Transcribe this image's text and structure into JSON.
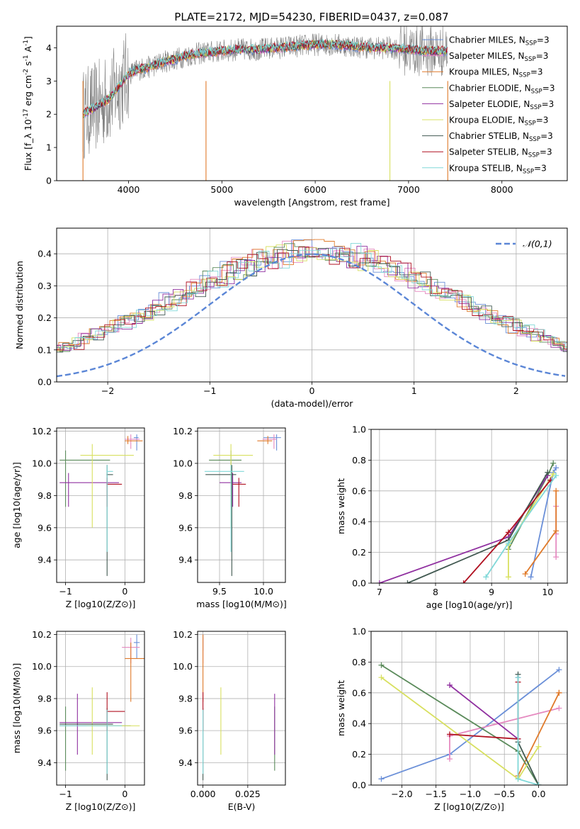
{
  "figure": {
    "title": "PLATE=2172, MJD=54230, FIBERID=0437, z=0.087"
  },
  "chart_data": [
    {
      "id": "spectrum",
      "type": "line",
      "title": "PLATE=2172, MJD=54230, FIBERID=0437, z=0.087",
      "xlabel": "wavelength [Angstrom, rest frame]",
      "ylabel": "Flux [f_λ 10^-17 erg cm^-2 s^-1 A^-1]",
      "xlim": [
        3230,
        8700
      ],
      "ylim": [
        0,
        4.65
      ],
      "xticks": [
        4000,
        5000,
        6000,
        7000,
        8000
      ],
      "yticks": [
        0,
        1,
        2,
        3,
        4
      ],
      "grid": false,
      "legend_position": "right",
      "data_color": "#808080",
      "series": [
        {
          "name": "Chabrier MILES, N_SSP=3",
          "color": "#6a8fd8"
        },
        {
          "name": "Salpeter MILES, N_SSP=3",
          "color": "#e58ac0"
        },
        {
          "name": "Kroupa MILES, N_SSP=3",
          "color": "#e07a2a"
        },
        {
          "name": "Chabrier ELODIE, N_SSP=3",
          "color": "#5a8a5a"
        },
        {
          "name": "Salpeter ELODIE, N_SSP=3",
          "color": "#9030a0"
        },
        {
          "name": "Kroupa ELODIE, N_SSP=3",
          "color": "#d8e060"
        },
        {
          "name": "Chabrier STELIB, N_SSP=3",
          "color": "#405850"
        },
        {
          "name": "Salpeter STELIB, N_SSP=3",
          "color": "#b01020"
        },
        {
          "name": "Kroupa STELIB, N_SSP=3",
          "color": "#80d8d8"
        }
      ],
      "continuum": {
        "x": [
          3510,
          3600,
          3700,
          3800,
          3900,
          4000,
          4100,
          4200,
          4300,
          4400,
          4500,
          4600,
          4800,
          5000,
          5200,
          5400,
          5600,
          5800,
          6000,
          6200,
          6400,
          6600,
          6800,
          7000,
          7200,
          7300
        ],
        "y": [
          2.0,
          2.15,
          2.3,
          2.5,
          2.85,
          3.2,
          3.35,
          3.4,
          3.5,
          3.6,
          3.65,
          3.75,
          3.85,
          3.9,
          3.95,
          3.95,
          4.0,
          4.05,
          4.1,
          4.1,
          4.05,
          4.0,
          4.0,
          3.95,
          3.9,
          3.9
        ]
      },
      "spikes": [
        {
          "x": 3512,
          "color": "#e07a2a"
        },
        {
          "x": 4830,
          "color": "#e07a2a"
        },
        {
          "x": 6800,
          "color": "#d8e060"
        },
        {
          "x": 7420,
          "color": "#e07a2a"
        }
      ]
    },
    {
      "id": "residuals",
      "type": "histogram",
      "xlabel": "(data-model)/error",
      "ylabel": "Normed distribution",
      "xlim": [
        -2.5,
        2.5
      ],
      "ylim": [
        0,
        0.48
      ],
      "xticks": [
        -2,
        -1,
        0,
        1,
        2
      ],
      "yticks": [
        0.0,
        0.1,
        0.2,
        0.3,
        0.4
      ],
      "grid": true,
      "legend": "𝒩(0,1)",
      "legend_position": "top-right",
      "bin_width": 0.1,
      "base_values": [
        0.017,
        0.022,
        0.027,
        0.032,
        0.038,
        0.044,
        0.052,
        0.06,
        0.068,
        0.077,
        0.087,
        0.097,
        0.109,
        0.12,
        0.133,
        0.146,
        0.159,
        0.174,
        0.188,
        0.203,
        0.218,
        0.234,
        0.25,
        0.266,
        0.282,
        0.297,
        0.313,
        0.327,
        0.341,
        0.354,
        0.366,
        0.377,
        0.386,
        0.394,
        0.4,
        0.404,
        0.406,
        0.41,
        0.405,
        0.4,
        0.394,
        0.386,
        0.377,
        0.366,
        0.354,
        0.341,
        0.327,
        0.313,
        0.297,
        0.282,
        0.266,
        0.25,
        0.234,
        0.218,
        0.203,
        0.188,
        0.174,
        0.159,
        0.146,
        0.133,
        0.12,
        0.109,
        0.097,
        0.087,
        0.077,
        0.068,
        0.06,
        0.052,
        0.044,
        0.038,
        0.032,
        0.027,
        0.022,
        0.017
      ]
    },
    {
      "id": "age-vs-Z",
      "type": "scatter",
      "xlabel": "Z [log10(Z/Z⊙)]",
      "ylabel": "age  [log10(age/yr)]",
      "xlim": [
        -1.15,
        0.33
      ],
      "ylim": [
        9.26,
        10.22
      ],
      "xticks": [
        -1,
        0
      ],
      "yticks": [
        9.4,
        9.6,
        9.8,
        10.0,
        10.2
      ],
      "grid": true,
      "points": [
        {
          "x": 0.2,
          "y": 10.16,
          "xerr": [
            0.05,
            0.03
          ],
          "yerr": [
            0.08,
            0.02
          ],
          "color": "#6a8fd8"
        },
        {
          "x": 0.1,
          "y": 10.15,
          "xerr": [
            0.1,
            0.15
          ],
          "yerr": [
            0.06,
            0.03
          ],
          "color": "#e58ac0"
        },
        {
          "x": 0.05,
          "y": 10.14,
          "xerr": [
            0.05,
            0.25
          ],
          "yerr": [
            0.02,
            0.03
          ],
          "color": "#e07a2a"
        },
        {
          "x": -1.0,
          "y": 10.02,
          "xerr": [
            0.1,
            0.75
          ],
          "yerr": [
            0.29,
            0.06
          ],
          "color": "#5a8a5a"
        },
        {
          "x": -0.95,
          "y": 9.88,
          "xerr": [
            0.15,
            0.85
          ],
          "yerr": [
            0.15,
            0.06
          ],
          "color": "#9030a0"
        },
        {
          "x": -0.55,
          "y": 10.05,
          "xerr": [
            0.2,
            0.7
          ],
          "yerr": [
            0.45,
            0.07
          ],
          "color": "#d8e060"
        },
        {
          "x": -0.3,
          "y": 9.93,
          "xerr": [
            0.01,
            0.1
          ],
          "yerr": [
            0.63,
            0.06
          ],
          "color": "#405850"
        },
        {
          "x": -0.3,
          "y": 9.87,
          "xerr": [
            0.01,
            0.25
          ],
          "yerr": [
            0.14,
            0.04
          ],
          "color": "#b01020"
        },
        {
          "x": -0.3,
          "y": 9.95,
          "xerr": [
            0.01,
            0.1
          ],
          "yerr": [
            0.5,
            0.04
          ],
          "color": "#80d8d8"
        }
      ]
    },
    {
      "id": "age-vs-mass",
      "type": "scatter",
      "xlabel": "mass [log10(M/M⊙)]",
      "ylabel": "",
      "xlim": [
        9.25,
        10.25
      ],
      "ylim": [
        9.26,
        10.22
      ],
      "xticks": [
        9.5,
        10.0
      ],
      "yticks": [
        9.4,
        9.6,
        9.8,
        10.0,
        10.2
      ],
      "grid": true,
      "points": [
        {
          "x": 10.15,
          "y": 10.16,
          "xerr": [
            0.15,
            0.05
          ],
          "yerr": [
            0.08,
            0.02
          ],
          "color": "#6a8fd8"
        },
        {
          "x": 10.12,
          "y": 10.15,
          "xerr": [
            0.13,
            0.03
          ],
          "yerr": [
            0.06,
            0.03
          ],
          "color": "#e58ac0"
        },
        {
          "x": 10.05,
          "y": 10.14,
          "xerr": [
            0.12,
            0.05
          ],
          "yerr": [
            0.02,
            0.03
          ],
          "color": "#e07a2a"
        },
        {
          "x": 9.63,
          "y": 10.02,
          "xerr": [
            0.25,
            0.12
          ],
          "yerr": [
            0.29,
            0.06
          ],
          "color": "#5a8a5a"
        },
        {
          "x": 9.65,
          "y": 9.88,
          "xerr": [
            0.15,
            0.1
          ],
          "yerr": [
            0.15,
            0.06
          ],
          "color": "#9030a0"
        },
        {
          "x": 9.63,
          "y": 10.05,
          "xerr": [
            0.2,
            0.25
          ],
          "yerr": [
            0.45,
            0.07
          ],
          "color": "#d8e060"
        },
        {
          "x": 9.64,
          "y": 9.93,
          "xerr": [
            0.3,
            0.05
          ],
          "yerr": [
            0.63,
            0.06
          ],
          "color": "#405850"
        },
        {
          "x": 9.72,
          "y": 9.87,
          "xerr": [
            0.07,
            0.08
          ],
          "yerr": [
            0.14,
            0.04
          ],
          "color": "#b01020"
        },
        {
          "x": 9.63,
          "y": 9.95,
          "xerr": [
            0.3,
            0.15
          ],
          "yerr": [
            0.5,
            0.04
          ],
          "color": "#80d8d8"
        }
      ]
    },
    {
      "id": "mass-weight-vs-age",
      "type": "line",
      "xlabel": "age  [log10(age/yr)]",
      "ylabel": "mass weight",
      "xlim": [
        6.85,
        10.35
      ],
      "ylim": [
        0.0,
        1.0
      ],
      "xticks": [
        7,
        8,
        9,
        10
      ],
      "yticks": [
        0.0,
        0.2,
        0.4,
        0.6,
        0.8,
        1.0
      ],
      "grid": true,
      "series": [
        {
          "x": [
            9.7,
            10.1,
            10.15
          ],
          "y": [
            0.04,
            0.72,
            0.75
          ],
          "color": "#6a8fd8"
        },
        {
          "x": [
            10.15,
            10.15,
            10.15
          ],
          "y": [
            0.17,
            0.32,
            0.5
          ],
          "color": "#e58ac0"
        },
        {
          "x": [
            9.6,
            10.15,
            10.15
          ],
          "y": [
            0.06,
            0.34,
            0.6
          ],
          "color": "#e07a2a"
        },
        {
          "x": [
            9.3,
            10.0,
            10.1
          ],
          "y": [
            0.22,
            0.7,
            0.78
          ],
          "color": "#5a8a5a"
        },
        {
          "x": [
            7.0,
            9.3,
            10.0
          ],
          "y": [
            0.0,
            0.3,
            0.7
          ],
          "color": "#9030a0"
        },
        {
          "x": [
            9.3,
            9.3,
            10.1
          ],
          "y": [
            0.04,
            0.25,
            0.71
          ],
          "color": "#d8e060"
        },
        {
          "x": [
            7.5,
            9.3,
            10.0
          ],
          "y": [
            0.0,
            0.28,
            0.72
          ],
          "color": "#405850"
        },
        {
          "x": [
            8.5,
            9.3,
            10.05
          ],
          "y": [
            0.0,
            0.33,
            0.67
          ],
          "color": "#b01020"
        },
        {
          "x": [
            8.9,
            9.3,
            10.15
          ],
          "y": [
            0.04,
            0.26,
            0.7
          ],
          "color": "#80d8d8"
        }
      ]
    },
    {
      "id": "mass-vs-Z",
      "type": "scatter",
      "xlabel": "Z [log10(Z/Z⊙)]",
      "ylabel": "mass [log10(M/M⊙)]",
      "xlim": [
        -1.15,
        0.33
      ],
      "ylim": [
        9.26,
        10.22
      ],
      "xticks": [
        -1,
        0
      ],
      "yticks": [
        9.4,
        9.6,
        9.8,
        10.0,
        10.2
      ],
      "grid": true,
      "points": [
        {
          "x": 0.2,
          "y": 10.15,
          "xerr": [
            0.05,
            0.05
          ],
          "yerr": [
            0.1,
            0.05
          ],
          "color": "#6a8fd8"
        },
        {
          "x": 0.1,
          "y": 10.12,
          "xerr": [
            0.15,
            0.15
          ],
          "yerr": [
            0.1,
            0.06
          ],
          "color": "#e58ac0"
        },
        {
          "x": 0.1,
          "y": 10.05,
          "xerr": [
            0.1,
            0.25
          ],
          "yerr": [
            0.27,
            0.1
          ],
          "color": "#e07a2a"
        },
        {
          "x": -1.0,
          "y": 9.63,
          "xerr": [
            0.1,
            1.1
          ],
          "yerr": [
            0.28,
            0.12
          ],
          "color": "#5a8a5a"
        },
        {
          "x": -0.8,
          "y": 9.65,
          "xerr": [
            0.3,
            0.75
          ],
          "yerr": [
            0.2,
            0.18
          ],
          "color": "#9030a0"
        },
        {
          "x": -0.55,
          "y": 9.63,
          "xerr": [
            0.1,
            0.8
          ],
          "yerr": [
            0.18,
            0.24
          ],
          "color": "#d8e060"
        },
        {
          "x": -0.3,
          "y": 9.64,
          "xerr": [
            0.8,
            0.1
          ],
          "yerr": [
            0.35,
            0.1
          ],
          "color": "#405850"
        },
        {
          "x": -0.3,
          "y": 9.72,
          "xerr": [
            0.01,
            0.3
          ],
          "yerr": [
            0.12,
            0.12
          ],
          "color": "#b01020"
        },
        {
          "x": -0.3,
          "y": 9.63,
          "xerr": [
            0.8,
            0.25
          ],
          "yerr": [
            0.3,
            0.1
          ],
          "color": "#80d8d8"
        }
      ]
    },
    {
      "id": "EBV",
      "type": "scatter",
      "xlabel": "E(B-V)",
      "ylabel": "",
      "xlim": [
        -0.003,
        0.046
      ],
      "ylim": [
        9.26,
        10.22
      ],
      "xticks": [
        0.0,
        0.025
      ],
      "xtick_labels": [
        "0.000",
        "0.025"
      ],
      "yticks": [
        9.4,
        9.6,
        9.8,
        10.0,
        10.2
      ],
      "grid": true,
      "points": [
        {
          "x": 0.0,
          "y": 10.15,
          "yerr": [
            0.05,
            0.05
          ],
          "color": "#6a8fd8"
        },
        {
          "x": 0.0,
          "y": 10.12,
          "yerr": [
            0.1,
            0.06
          ],
          "color": "#e58ac0"
        },
        {
          "x": 0.0,
          "y": 10.05,
          "yerr": [
            0.27,
            0.15
          ],
          "color": "#e07a2a"
        },
        {
          "x": 0.04,
          "y": 9.63,
          "yerr": [
            0.28,
            0.12
          ],
          "color": "#5a8a5a"
        },
        {
          "x": 0.04,
          "y": 9.65,
          "yerr": [
            0.2,
            0.18
          ],
          "color": "#9030a0"
        },
        {
          "x": 0.01,
          "y": 9.63,
          "yerr": [
            0.18,
            0.24
          ],
          "color": "#d8e060"
        },
        {
          "x": 0.0,
          "y": 9.64,
          "yerr": [
            0.35,
            0.1
          ],
          "color": "#405850"
        },
        {
          "x": 0.0,
          "y": 9.72,
          "yerr": [
            0.12,
            0.12
          ],
          "color": "#b01020"
        },
        {
          "x": 0.0,
          "y": 9.63,
          "yerr": [
            0.3,
            0.1
          ],
          "color": "#80d8d8"
        }
      ]
    },
    {
      "id": "mass-weight-vs-Z",
      "type": "line",
      "xlabel": "Z [log10(Z/Z⊙)]",
      "ylabel": "mass weight",
      "xlim": [
        -2.45,
        0.42
      ],
      "ylim": [
        0.0,
        1.0
      ],
      "xticks": [
        -2.0,
        -1.5,
        -1.0,
        -0.5,
        0.0
      ],
      "yticks": [
        0.0,
        0.2,
        0.4,
        0.6,
        0.8,
        1.0
      ],
      "grid": true,
      "series": [
        {
          "x": [
            -2.3,
            -1.3,
            0.3
          ],
          "y": [
            0.04,
            0.2,
            0.75
          ],
          "color": "#6a8fd8"
        },
        {
          "x": [
            -1.3,
            -1.3,
            0.3
          ],
          "y": [
            0.17,
            0.32,
            0.5
          ],
          "color": "#e58ac0"
        },
        {
          "x": [
            -0.3,
            0.3,
            0.3
          ],
          "y": [
            0.06,
            0.6,
            0.6
          ],
          "color": "#e07a2a"
        },
        {
          "x": [
            -2.3,
            -0.3,
            0.0
          ],
          "y": [
            0.78,
            0.22,
            0.0
          ],
          "color": "#5a8a5a"
        },
        {
          "x": [
            -1.3,
            -0.3,
            -0.3
          ],
          "y": [
            0.65,
            0.3,
            0.7
          ],
          "color": "#9030a0"
        },
        {
          "x": [
            -2.3,
            -0.3,
            0.0
          ],
          "y": [
            0.7,
            0.04,
            0.25
          ],
          "color": "#d8e060"
        },
        {
          "x": [
            -0.3,
            -0.3,
            0.0
          ],
          "y": [
            0.72,
            0.28,
            0.0
          ],
          "color": "#405850"
        },
        {
          "x": [
            -1.3,
            -0.3,
            -0.3
          ],
          "y": [
            0.33,
            0.3,
            0.67
          ],
          "color": "#b01020"
        },
        {
          "x": [
            -0.3,
            -0.3,
            0.0
          ],
          "y": [
            0.7,
            0.04,
            0.0
          ],
          "color": "#80d8d8"
        }
      ]
    }
  ]
}
